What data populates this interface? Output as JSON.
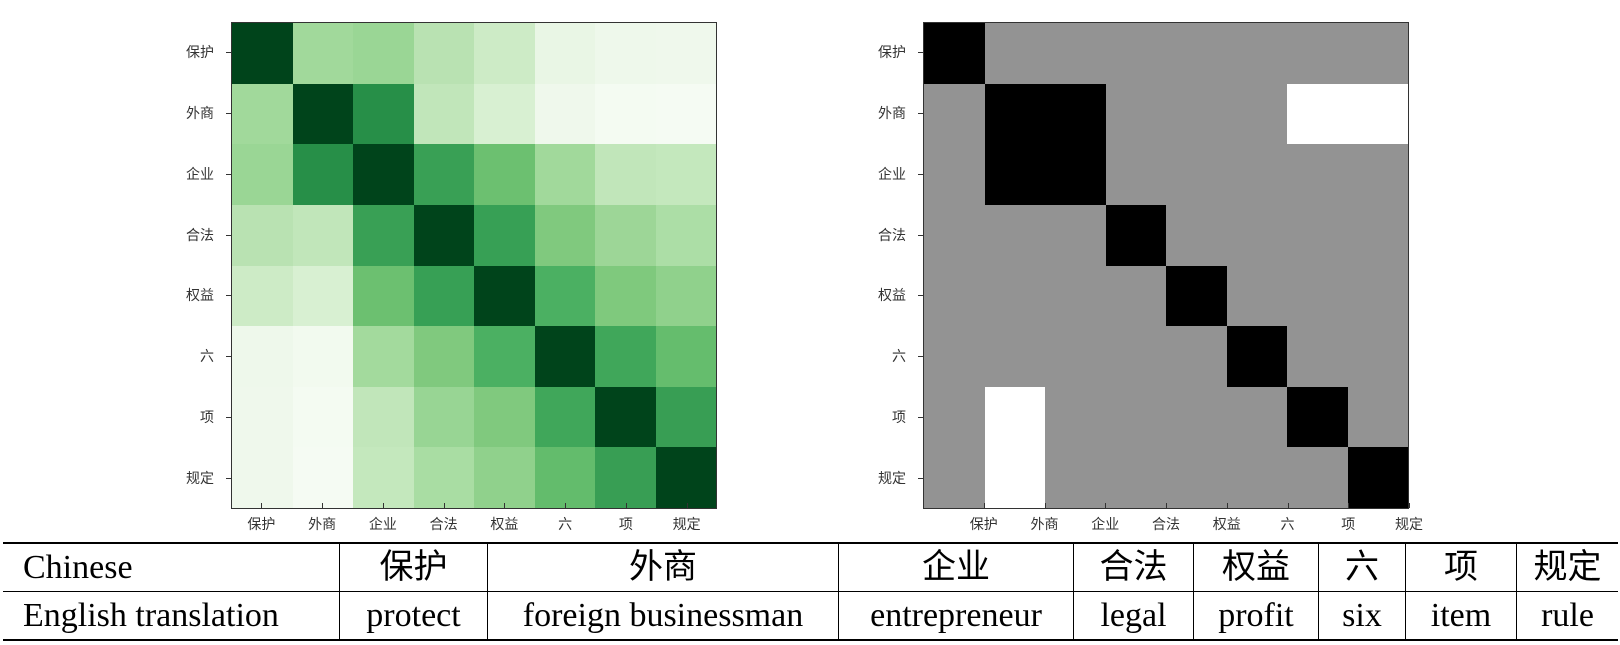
{
  "chart_data": [
    {
      "type": "heatmap",
      "title": "",
      "colormap": "Greens",
      "x_labels": [
        "保护",
        "外商",
        "企业",
        "合法",
        "权益",
        "六",
        "项",
        "规定"
      ],
      "y_labels": [
        "保护",
        "外商",
        "企业",
        "合法",
        "权益",
        "六",
        "项",
        "规定"
      ],
      "values": [
        [
          1.0,
          0.35,
          0.38,
          0.25,
          0.18,
          0.08,
          0.06,
          0.06
        ],
        [
          0.35,
          1.0,
          0.78,
          0.22,
          0.14,
          0.06,
          0.04,
          0.03
        ],
        [
          0.38,
          0.78,
          1.0,
          0.66,
          0.52,
          0.35,
          0.24,
          0.22
        ],
        [
          0.25,
          0.22,
          0.66,
          1.0,
          0.68,
          0.46,
          0.38,
          0.3
        ],
        [
          0.18,
          0.14,
          0.52,
          0.68,
          1.0,
          0.6,
          0.46,
          0.4
        ],
        [
          0.08,
          0.06,
          0.35,
          0.46,
          0.6,
          1.0,
          0.64,
          0.52
        ],
        [
          0.06,
          0.04,
          0.24,
          0.38,
          0.46,
          0.64,
          1.0,
          0.7
        ],
        [
          0.06,
          0.03,
          0.22,
          0.3,
          0.4,
          0.52,
          0.7,
          1.0
        ]
      ],
      "vmin": 0,
      "vmax": 1,
      "colors": [
        [
          "#00441b",
          "#a1d99b",
          "#9ad695",
          "#b9e2b2",
          "#cdebc6",
          "#e9f6e5",
          "#eef8eb",
          "#eff8ec"
        ],
        [
          "#a1d99b",
          "#00441b",
          "#278f48",
          "#c1e6ba",
          "#d8f0d2",
          "#eff8ec",
          "#f4fbf2",
          "#f5fbf3"
        ],
        [
          "#9ad695",
          "#278f48",
          "#00441b",
          "#39a055",
          "#6cc070",
          "#a1d99b",
          "#c1e6ba",
          "#c4e8bd"
        ],
        [
          "#b9e2b2",
          "#c1e6ba",
          "#39a055",
          "#00441b",
          "#37a055",
          "#80c97e",
          "#9dd697",
          "#acdea6"
        ],
        [
          "#cdebc6",
          "#d8f0d2",
          "#6cc070",
          "#37a055",
          "#00441b",
          "#4bb062",
          "#7fc97d",
          "#90d18c"
        ],
        [
          "#eef8eb",
          "#f2faef",
          "#a3da9d",
          "#80c97e",
          "#4bb062",
          "#00441b",
          "#40a75a",
          "#65bd6d"
        ],
        [
          "#eff8ec",
          "#f4fbf2",
          "#c1e6ba",
          "#98d594",
          "#80c97e",
          "#40a75a",
          "#00441b",
          "#389e54"
        ],
        [
          "#eff8ec",
          "#f5fbf3",
          "#c4e8bd",
          "#a9dda3",
          "#90d18c",
          "#63bc6c",
          "#389e54",
          "#00441b"
        ]
      ]
    },
    {
      "type": "heatmap",
      "title": "",
      "colormap": "gray (black = same segment, gray = neutral, white = highlighted)",
      "x_labels": [
        "保护",
        "外商",
        "企业",
        "合法",
        "权益",
        "六",
        "项",
        "规定"
      ],
      "y_labels": [
        "保护",
        "外商",
        "企业",
        "合法",
        "权益",
        "六",
        "项",
        "规定"
      ],
      "values": [
        [
          2,
          1,
          1,
          1,
          1,
          1,
          1,
          1
        ],
        [
          1,
          2,
          2,
          1,
          1,
          1,
          0,
          0
        ],
        [
          1,
          2,
          2,
          1,
          1,
          1,
          1,
          1
        ],
        [
          1,
          1,
          1,
          2,
          1,
          1,
          1,
          1
        ],
        [
          1,
          1,
          1,
          1,
          2,
          1,
          1,
          1
        ],
        [
          1,
          1,
          1,
          1,
          1,
          2,
          1,
          1
        ],
        [
          1,
          0,
          1,
          1,
          1,
          1,
          2,
          1
        ],
        [
          1,
          0,
          1,
          1,
          1,
          1,
          1,
          2
        ]
      ],
      "value_legend": {
        "2": "black",
        "1": "gray",
        "0": "white"
      },
      "colors": {
        "2": "#000000",
        "1": "#939393",
        "0": "#ffffff"
      }
    },
    {
      "type": "table",
      "rows": [
        {
          "header": "Chinese",
          "cells": [
            "保护",
            "外商",
            "企业",
            "合法",
            "权益",
            "六",
            "项",
            "规定"
          ]
        },
        {
          "header": "English translation",
          "cells": [
            "protect",
            "foreign businessman",
            "entrepreneur",
            "legal",
            "profit",
            "six",
            "item",
            "rule"
          ]
        }
      ]
    }
  ],
  "labels": [
    "保护",
    "外商",
    "企业",
    "合法",
    "权益",
    "六",
    "项",
    "规定"
  ],
  "table": {
    "row1_header": "Chinese",
    "row2_header": "English translation",
    "chinese": [
      "保护",
      "外商",
      "企业",
      "合法",
      "权益",
      "六",
      "项",
      "规定"
    ],
    "english": [
      "protect",
      "foreign businessman",
      "entrepreneur",
      "legal",
      "profit",
      "six",
      "item",
      "rule"
    ]
  }
}
